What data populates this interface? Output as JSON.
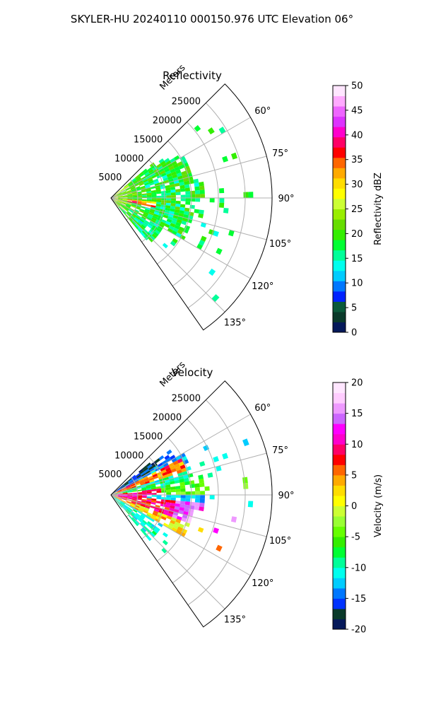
{
  "figure": {
    "title": "SKYLER-HU  20240110  000150.976 UTC Elevation 06°"
  },
  "colors": {
    "reflectivity_colormap": [
      "#05195a",
      "#0a3a2a",
      "#0a5a3a",
      "#0022ff",
      "#0077ff",
      "#00ccff",
      "#00ffee",
      "#00ff99",
      "#00ff33",
      "#33ee00",
      "#66dd00",
      "#99ee00",
      "#ccff33",
      "#ffff00",
      "#ffdd00",
      "#ffaa00",
      "#ff6600",
      "#ff0000",
      "#ff0066",
      "#ff00cc",
      "#dd33ff",
      "#ee66ff",
      "#ffaaff",
      "#ffe6ff"
    ],
    "velocity_colormap": [
      "#05195a",
      "#0a3a2a",
      "#0033ff",
      "#0077ff",
      "#00ccff",
      "#00ffee",
      "#00ff99",
      "#00ff33",
      "#33ee00",
      "#66ff00",
      "#99ff33",
      "#ccff33",
      "#ffff00",
      "#ffdd00",
      "#ffaa00",
      "#ff6600",
      "#ff0000",
      "#ff0066",
      "#ff00cc",
      "#ff00ff",
      "#cc66ff",
      "#ee99ff",
      "#ffccff",
      "#ffe6ff"
    ],
    "grid": "#b0b0b0",
    "frame": "#000000"
  },
  "chart_data": [
    {
      "type": "heatmap",
      "title": "Reflectivity",
      "polar": true,
      "radial_label": "Meters",
      "radial_ticks": [
        "5000",
        "10000",
        "15000",
        "20000",
        "25000"
      ],
      "radial_tick_values": [
        5000,
        10000,
        15000,
        20000,
        25000
      ],
      "rlim": [
        0,
        30000
      ],
      "angle_ticks": [
        "60°",
        "75°",
        "90°",
        "105°",
        "120°",
        "135°"
      ],
      "angle_tick_values": [
        60,
        75,
        90,
        105,
        120,
        135
      ],
      "theta_range_deg": [
        45,
        145
      ],
      "grid": true,
      "colorbar": {
        "label": "Reflectivity dBZ",
        "range": [
          0,
          50
        ],
        "tick_labels": [
          "0",
          "5",
          "10",
          "15",
          "20",
          "25",
          "30",
          "35",
          "40",
          "45",
          "50"
        ],
        "tick_values": [
          0,
          5,
          10,
          15,
          20,
          25,
          30,
          35,
          40,
          45,
          50
        ]
      },
      "field_description": "mostly 15-25 dBZ echoes, strongest (30-40 dBZ) near the radar along 95-100°"
    },
    {
      "type": "heatmap",
      "title": "Velocity",
      "polar": true,
      "radial_label": "Meters",
      "radial_ticks": [
        "5000",
        "10000",
        "15000",
        "20000",
        "25000"
      ],
      "radial_tick_values": [
        5000,
        10000,
        15000,
        20000,
        25000
      ],
      "rlim": [
        0,
        30000
      ],
      "angle_ticks": [
        "60°",
        "75°",
        "90°",
        "105°",
        "120°",
        "135°"
      ],
      "angle_tick_values": [
        60,
        75,
        90,
        105,
        120,
        135
      ],
      "theta_range_deg": [
        45,
        145
      ],
      "grid": true,
      "colorbar": {
        "label": "Velocity (m/s)",
        "range": [
          -20,
          20
        ],
        "tick_labels": [
          "-20",
          "-15",
          "-10",
          "-5",
          "0",
          "5",
          "10",
          "15",
          "20"
        ],
        "tick_values": [
          -20,
          -15,
          -10,
          -5,
          0,
          5,
          10,
          15,
          20
        ]
      },
      "field_description": "negative velocities (green/cyan) north of 90°, positive velocities (red/magenta) south of 90°"
    }
  ]
}
